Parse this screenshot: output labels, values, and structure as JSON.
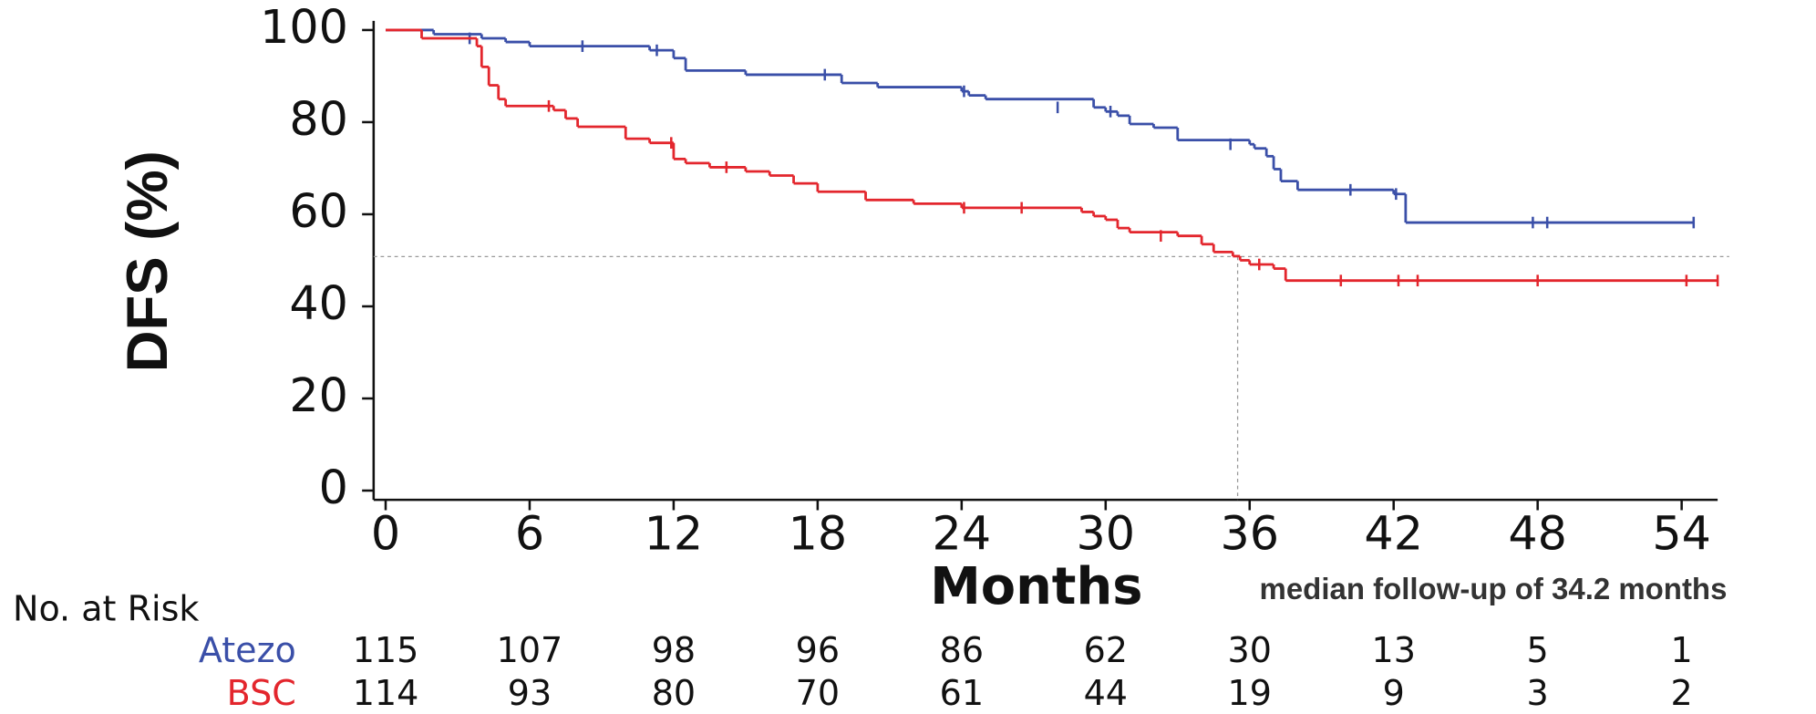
{
  "chart_data": {
    "type": "step",
    "y_label": "DFS (%)",
    "x_label": "Months",
    "annotation": "median follow-up of 34.2 months",
    "xlim": [
      -0.5,
      55.5
    ],
    "ylim": [
      -2,
      102
    ],
    "xticks": [
      0,
      6,
      12,
      18,
      24,
      30,
      36,
      42,
      48,
      54
    ],
    "yticks": [
      0,
      20,
      40,
      60,
      80,
      100
    ],
    "reference_lines": {
      "y": 50.8,
      "x": 35.5
    },
    "series": [
      {
        "name": "Atezo",
        "color": "#3a4fa8",
        "x": [
          0,
          2,
          4,
          5,
          6,
          11,
          12,
          12.5,
          15,
          19,
          20.5,
          24,
          24.3,
          25,
          29.5,
          30,
          30.5,
          31,
          32,
          33,
          36,
          36.2,
          36.7,
          37,
          37.3,
          38,
          42,
          42.5,
          54.5
        ],
        "values": [
          100,
          99.1,
          98.2,
          97.4,
          96.5,
          95.6,
          93.9,
          91.2,
          90.3,
          88.5,
          87.6,
          86.7,
          85.8,
          85,
          83.2,
          82.3,
          81.4,
          79.6,
          78.8,
          76.1,
          75.2,
          74.3,
          72.6,
          69.8,
          67.2,
          65.3,
          64.4,
          58.2,
          58.2
        ],
        "censor_x": [
          3.5,
          8.2,
          11.3,
          18.3,
          24.1,
          28,
          30.2,
          35.2,
          40.2,
          42.1,
          47.8,
          48.4
        ],
        "censor_y": [
          98.2,
          96.5,
          95.6,
          90.3,
          86.7,
          83.2,
          82.3,
          75.2,
          65.3,
          64.4,
          58.2,
          58.2
        ]
      },
      {
        "name": "BSC",
        "color": "#e3262d",
        "x": [
          0,
          1.5,
          3.8,
          4,
          4.3,
          4.7,
          5,
          7,
          7.5,
          8,
          10,
          11,
          12,
          12.5,
          13.5,
          15,
          16,
          17,
          18,
          20,
          22,
          24,
          29,
          29.5,
          30,
          30.5,
          31,
          33,
          34,
          34.5,
          35.3,
          35.6,
          36,
          37,
          37.5,
          55.5
        ],
        "values": [
          100,
          98.2,
          96.5,
          92,
          88,
          85,
          83.5,
          82.6,
          80.8,
          79,
          76.4,
          75.5,
          72,
          71.1,
          70.2,
          69.3,
          68.4,
          66.7,
          64.9,
          63.1,
          62.3,
          61.4,
          60.5,
          59.6,
          58.8,
          57,
          56.1,
          55.3,
          53.5,
          51.8,
          50.9,
          50,
          49.1,
          48.2,
          45.6,
          45.6
        ],
        "censor_x": [
          6.8,
          11.9,
          14.2,
          24.1,
          26.5,
          32.3,
          36.4,
          39.8,
          42.2,
          43,
          48,
          54.2
        ],
        "censor_y": [
          83.5,
          75.5,
          70.2,
          61.4,
          61.4,
          55.3,
          49.1,
          45.6,
          45.6,
          45.6,
          45.6,
          45.6
        ]
      }
    ],
    "risk_table": {
      "title": "No. at Risk",
      "times": [
        0,
        6,
        12,
        18,
        24,
        30,
        36,
        42,
        48,
        54
      ],
      "rows": [
        {
          "name": "Atezo",
          "color": "#3a4fa8",
          "counts": [
            115,
            107,
            98,
            96,
            86,
            62,
            30,
            13,
            5,
            1
          ]
        },
        {
          "name": "BSC",
          "color": "#e3262d",
          "counts": [
            114,
            93,
            80,
            70,
            61,
            44,
            19,
            9,
            3,
            2
          ]
        }
      ]
    }
  }
}
